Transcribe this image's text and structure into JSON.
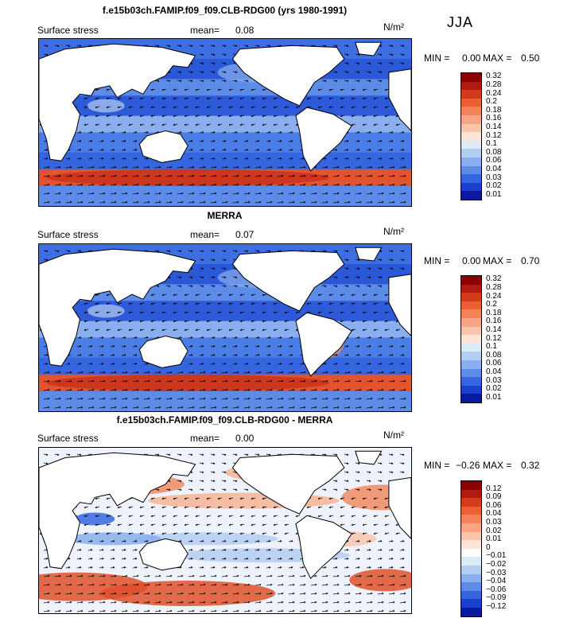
{
  "season": "JJA",
  "units_label": "N/m²",
  "panels": [
    {
      "title": "f.e15b03ch.FAMIP.f09_f09.CLB-RDG00 (yrs 1980-1991)",
      "variable_label": "Surface stress",
      "mean_label": "mean=",
      "mean_value": "0.08",
      "min_label": "MIN =",
      "min_value": "0.00",
      "max_label": "MAX =",
      "max_value": "0.50",
      "levels": [
        "0.32",
        "0.28",
        "0.24",
        "0.2",
        "0.18",
        "0.16",
        "0.14",
        "0.12",
        "0.1",
        "0.08",
        "0.06",
        "0.04",
        "0.03",
        "0.02",
        "0.01"
      ],
      "colors": [
        "#8b0000",
        "#b21a10",
        "#d43a1e",
        "#ea5f35",
        "#f3845a",
        "#f7a585",
        "#f9c5ad",
        "#fde4d6",
        "#ddebf7",
        "#b4cdf2",
        "#8aaeee",
        "#5c8ce8",
        "#3566e0",
        "#1b3fcf",
        "#0a1aa0"
      ]
    },
    {
      "title": "MERRA",
      "variable_label": "Surface stress",
      "mean_label": "mean=",
      "mean_value": "0.07",
      "min_label": "MIN =",
      "min_value": "0.00",
      "max_label": "MAX =",
      "max_value": "0.70",
      "levels": [
        "0.32",
        "0.28",
        "0.24",
        "0.2",
        "0.18",
        "0.16",
        "0.14",
        "0.12",
        "0.1",
        "0.08",
        "0.06",
        "0.04",
        "0.03",
        "0.02",
        "0.01"
      ],
      "colors": [
        "#8b0000",
        "#b21a10",
        "#d43a1e",
        "#ea5f35",
        "#f3845a",
        "#f7a585",
        "#f9c5ad",
        "#fde4d6",
        "#ddebf7",
        "#b4cdf2",
        "#8aaeee",
        "#5c8ce8",
        "#3566e0",
        "#1b3fcf",
        "#0a1aa0"
      ]
    },
    {
      "title": "f.e15b03ch.FAMIP.f09_f09.CLB-RDG00 - MERRA",
      "variable_label": "Surface stress",
      "mean_label": "mean=",
      "mean_value": "0.00",
      "min_label": "MIN =",
      "min_value": "−0.26",
      "max_label": "MAX =",
      "max_value": "0.32",
      "levels": [
        "0.12",
        "0.09",
        "0.06",
        "0.04",
        "0.03",
        "0.02",
        "0.01",
        "0",
        "−0.01",
        "−0.02",
        "−0.03",
        "−0.04",
        "−0.06",
        "−0.09",
        "−0.12"
      ],
      "colors": [
        "#8b0000",
        "#b21a10",
        "#d43a1e",
        "#ea5f35",
        "#f3845a",
        "#f7a585",
        "#f9c5ad",
        "#fde4d6",
        "#ffffff",
        "#ddebf7",
        "#b4cdf2",
        "#8aaeee",
        "#5c8ce8",
        "#3566e0",
        "#1b3fcf",
        "#0a1aa0"
      ]
    }
  ],
  "chart_data": [
    {
      "type": "heatmap",
      "title": "f.e15b03ch.FAMIP.f09_f09.CLB-RDG00 (yrs 1980-1991)",
      "variable": "Surface stress",
      "units": "N/m²",
      "season": "JJA",
      "mean": 0.08,
      "min": 0.0,
      "max": 0.5,
      "contour_levels": [
        0.01,
        0.02,
        0.03,
        0.04,
        0.06,
        0.08,
        0.1,
        0.12,
        0.14,
        0.16,
        0.18,
        0.2,
        0.24,
        0.28,
        0.32
      ]
    },
    {
      "type": "heatmap",
      "title": "MERRA",
      "variable": "Surface stress",
      "units": "N/m²",
      "season": "JJA",
      "mean": 0.07,
      "min": 0.0,
      "max": 0.7,
      "contour_levels": [
        0.01,
        0.02,
        0.03,
        0.04,
        0.06,
        0.08,
        0.1,
        0.12,
        0.14,
        0.16,
        0.18,
        0.2,
        0.24,
        0.28,
        0.32
      ]
    },
    {
      "type": "heatmap",
      "title": "f.e15b03ch.FAMIP.f09_f09.CLB-RDG00 - MERRA",
      "variable": "Surface stress",
      "units": "N/m²",
      "season": "JJA",
      "mean": 0.0,
      "min": -0.26,
      "max": 0.32,
      "contour_levels": [
        -0.12,
        -0.09,
        -0.06,
        -0.04,
        -0.03,
        -0.02,
        -0.01,
        0,
        0.01,
        0.02,
        0.03,
        0.04,
        0.06,
        0.09,
        0.12
      ]
    }
  ]
}
